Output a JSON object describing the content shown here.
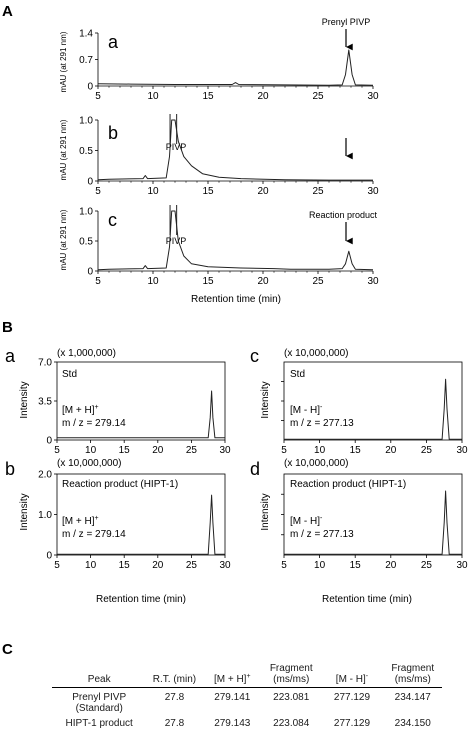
{
  "figure": {
    "panel_a": {
      "label": "A",
      "ylabel": "mAU (at 291 nm)",
      "xlabel": "Retention time (min)",
      "traces": [
        {
          "label": "a",
          "peak_label": "Prenyl PIVP",
          "y_ticks": [
            "0",
            "0.7",
            "1.4"
          ]
        },
        {
          "label": "b",
          "peak_label": "PIVP",
          "y_ticks": [
            "0",
            "0.5",
            "1.0"
          ]
        },
        {
          "label": "c",
          "peak_label": "PIVP",
          "arrow_label": "Reaction product",
          "y_ticks": [
            "0",
            "0.5",
            "1.0"
          ]
        }
      ]
    },
    "panel_b": {
      "label": "B",
      "xlabel_left": "Retention time (min)",
      "xlabel_right": "Retention time (min)",
      "plots": [
        {
          "label": "a",
          "scale": "(x 1,000,000)",
          "sample": "Std",
          "ion": "[M + H]",
          "ion_sign": "+",
          "mz": "m / z = 279.14",
          "ylabel": "Intensity",
          "y_ticks": [
            "0",
            "3.5",
            "7.0"
          ]
        },
        {
          "label": "b",
          "scale": "(x 10,000,000)",
          "sample": "Reaction product (HIPT-1)",
          "ion": "[M + H]",
          "ion_sign": "+",
          "mz": "m / z = 279.14",
          "ylabel": "Intensity",
          "y_ticks": [
            "0",
            "1.0",
            "2.0"
          ]
        },
        {
          "label": "c",
          "scale": "(x 10,000,000)",
          "sample": "Std",
          "ion": "[M - H]",
          "ion_sign": "-",
          "mz": "m / z = 277.13",
          "ylabel": "Intensity",
          "y_ticks": []
        },
        {
          "label": "d",
          "scale": "(x 10,000,000)",
          "sample": "Reaction product (HIPT-1)",
          "ion": "[M - H]",
          "ion_sign": "-",
          "mz": "m / z = 277.13",
          "ylabel": "Intensity",
          "y_ticks": []
        }
      ]
    },
    "panel_c": {
      "label": "C",
      "headers": {
        "peak": "Peak",
        "rt": "R.T. (min)",
        "mh_plus": "[M + H]",
        "mh_plus_sign": "+",
        "frag1": "Fragment (ms/ms)",
        "mh_minus": "[M - H]",
        "mh_minus_sign": "-",
        "frag2": "Fragment (ms/ms)"
      },
      "rows": [
        {
          "peak": "Prenyl PIVP (Standard)",
          "rt": "27.8",
          "mh_plus": "279.141",
          "frag1": "223.081",
          "mh_minus": "277.129",
          "frag2": "234.147"
        },
        {
          "peak": "HIPT-1 product",
          "rt": "27.8",
          "mh_plus": "279.143",
          "frag1": "223.084",
          "mh_minus": "277.129",
          "frag2": "234.150"
        }
      ]
    }
  },
  "chart_data": [
    {
      "type": "line",
      "title": "",
      "xlabel": "Retention time (min)",
      "ylabel": "mAU (at 291 nm)",
      "xlim": [
        5,
        30
      ],
      "ylim": [
        0,
        1.4
      ],
      "x_ticks": [
        5,
        10,
        15,
        20,
        25,
        30
      ],
      "y_ticks": [
        0,
        0.7,
        1.4
      ],
      "series": [
        {
          "points": [
            [
              5,
              0.06
            ],
            [
              8,
              0.05
            ],
            [
              12,
              0.04
            ],
            [
              17.2,
              0.04
            ],
            [
              17.5,
              0.09
            ],
            [
              17.8,
              0.04
            ],
            [
              22,
              0.03
            ],
            [
              26,
              0.02
            ],
            [
              27.2,
              0.03
            ],
            [
              27.5,
              0.3
            ],
            [
              27.8,
              0.95
            ],
            [
              28.1,
              0.3
            ],
            [
              28.4,
              0.03
            ],
            [
              30,
              0.02
            ]
          ]
        }
      ]
    },
    {
      "type": "line",
      "title": "",
      "xlabel": "Retention time (min)",
      "ylabel": "mAU (at 291 nm)",
      "xlim": [
        5,
        30
      ],
      "ylim": [
        0,
        1.0
      ],
      "x_ticks": [
        5,
        10,
        15,
        20,
        25,
        30
      ],
      "y_ticks": [
        0,
        0.5,
        1.0
      ],
      "series": [
        {
          "points": [
            [
              5,
              0.02
            ],
            [
              6,
              0.03
            ],
            [
              9.1,
              0.04
            ],
            [
              9.3,
              0.09
            ],
            [
              9.5,
              0.04
            ],
            [
              11.2,
              0.05
            ],
            [
              11.5,
              0.4
            ],
            [
              11.7,
              1.0
            ],
            [
              12.0,
              1.0
            ],
            [
              12.3,
              0.65
            ],
            [
              12.8,
              0.4
            ],
            [
              13.5,
              0.25
            ],
            [
              14.5,
              0.12
            ],
            [
              16,
              0.06
            ],
            [
              18,
              0.04
            ],
            [
              22,
              0.02
            ],
            [
              26,
              0.015
            ],
            [
              30,
              0.015
            ]
          ]
        }
      ]
    },
    {
      "type": "line",
      "title": "",
      "xlabel": "Retention time (min)",
      "ylabel": "mAU (at 291 nm)",
      "xlim": [
        5,
        30
      ],
      "ylim": [
        0,
        1.0
      ],
      "x_ticks": [
        5,
        10,
        15,
        20,
        25,
        30
      ],
      "y_ticks": [
        0,
        0.5,
        1.0
      ],
      "series": [
        {
          "points": [
            [
              5,
              0.02
            ],
            [
              6,
              0.03
            ],
            [
              9.1,
              0.04
            ],
            [
              9.3,
              0.09
            ],
            [
              9.5,
              0.04
            ],
            [
              11.2,
              0.05
            ],
            [
              11.5,
              0.4
            ],
            [
              11.7,
              1.0
            ],
            [
              12.0,
              1.0
            ],
            [
              12.3,
              0.5
            ],
            [
              12.8,
              0.25
            ],
            [
              13.5,
              0.12
            ],
            [
              15,
              0.07
            ],
            [
              18,
              0.05
            ],
            [
              21,
              0.04
            ],
            [
              22.5,
              0.03
            ],
            [
              26,
              0.03
            ],
            [
              27.2,
              0.04
            ],
            [
              27.5,
              0.12
            ],
            [
              27.8,
              0.33
            ],
            [
              28.1,
              0.12
            ],
            [
              28.4,
              0.03
            ],
            [
              30,
              0.02
            ]
          ]
        }
      ]
    },
    {
      "type": "line",
      "title": "",
      "xlabel": "Retention time (min)",
      "ylabel": "Intensity",
      "xlim": [
        5,
        30
      ],
      "ylim": [
        0,
        7.0
      ],
      "x_ticks": [
        5,
        10,
        15,
        20,
        25,
        30
      ],
      "y_ticks": [
        0,
        3.5,
        7.0
      ],
      "series": [
        {
          "points": [
            [
              5,
              0.2
            ],
            [
              10,
              0.2
            ],
            [
              15,
              0.2
            ],
            [
              20,
              0.2
            ],
            [
              25,
              0.2
            ],
            [
              27.5,
              0.2
            ],
            [
              27.8,
              2.0
            ],
            [
              28.0,
              4.4
            ],
            [
              28.2,
              2.0
            ],
            [
              28.5,
              0.2
            ],
            [
              30,
              0.2
            ]
          ]
        }
      ]
    },
    {
      "type": "line",
      "title": "",
      "xlabel": "Retention time (min)",
      "ylabel": "Intensity",
      "xlim": [
        5,
        30
      ],
      "ylim": [
        0,
        2.0
      ],
      "x_ticks": [
        5,
        10,
        15,
        20,
        25,
        30
      ],
      "y_ticks": [
        0,
        1.0,
        2.0
      ],
      "series": [
        {
          "points": [
            [
              5,
              0.02
            ],
            [
              15,
              0.02
            ],
            [
              25,
              0.02
            ],
            [
              27.5,
              0.02
            ],
            [
              27.8,
              0.8
            ],
            [
              28.0,
              1.48
            ],
            [
              28.2,
              0.8
            ],
            [
              28.5,
              0.02
            ],
            [
              30,
              0.02
            ]
          ]
        }
      ]
    },
    {
      "type": "line",
      "title": "",
      "xlabel": "",
      "ylabel": "Intensity",
      "xlim": [
        5,
        30
      ],
      "ylim": [
        0,
        1.0
      ],
      "x_ticks": [
        5,
        10,
        15,
        20,
        25,
        30
      ],
      "y_ticks": [],
      "series": [
        {
          "points": [
            [
              5,
              0.01
            ],
            [
              15,
              0.01
            ],
            [
              25,
              0.01
            ],
            [
              27.2,
              0.01
            ],
            [
              27.5,
              0.4
            ],
            [
              27.7,
              0.78
            ],
            [
              27.9,
              0.4
            ],
            [
              28.2,
              0.01
            ],
            [
              30,
              0.01
            ]
          ]
        }
      ]
    },
    {
      "type": "line",
      "title": "",
      "xlabel": "Retention time (min)",
      "ylabel": "Intensity",
      "xlim": [
        5,
        30
      ],
      "ylim": [
        0,
        1.0
      ],
      "x_ticks": [
        5,
        10,
        15,
        20,
        25,
        30
      ],
      "y_ticks": [],
      "series": [
        {
          "points": [
            [
              5,
              0.01
            ],
            [
              15,
              0.01
            ],
            [
              25,
              0.01
            ],
            [
              27.2,
              0.01
            ],
            [
              27.5,
              0.4
            ],
            [
              27.7,
              0.79
            ],
            [
              27.9,
              0.4
            ],
            [
              28.2,
              0.01
            ],
            [
              30,
              0.01
            ]
          ]
        }
      ]
    }
  ]
}
